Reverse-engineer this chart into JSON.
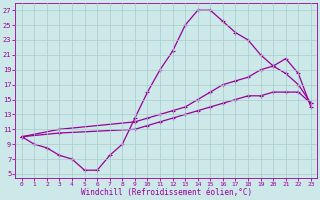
{
  "xlabel": "Windchill (Refroidissement éolien,°C)",
  "bg_color": "#cce8e8",
  "line_color": "#990099",
  "grid_color": "#aacccc",
  "xlim": [
    -0.5,
    23.5
  ],
  "ylim": [
    4.5,
    28
  ],
  "xticks": [
    0,
    1,
    2,
    3,
    4,
    5,
    6,
    7,
    8,
    9,
    10,
    11,
    12,
    13,
    14,
    15,
    16,
    17,
    18,
    19,
    20,
    21,
    22,
    23
  ],
  "yticks": [
    5,
    7,
    9,
    11,
    13,
    15,
    17,
    19,
    21,
    23,
    25,
    27
  ],
  "line1_x": [
    0,
    1,
    2,
    3,
    4,
    5,
    6,
    7,
    8,
    9,
    10,
    11,
    12,
    13,
    14,
    15,
    16,
    17,
    18,
    19,
    20,
    21,
    22,
    23
  ],
  "line1_y": [
    10,
    9,
    8.5,
    7.5,
    7,
    5.5,
    5.5,
    7.5,
    9,
    12.5,
    16,
    19,
    21.5,
    25,
    27,
    27,
    25.5,
    24,
    23,
    21,
    19.5,
    18.5,
    17,
    14.5
  ],
  "line2_x": [
    0,
    3,
    9,
    10,
    11,
    12,
    13,
    14,
    15,
    16,
    17,
    18,
    19,
    20,
    21,
    22,
    23
  ],
  "line2_y": [
    10,
    11,
    12,
    12.5,
    13,
    13.5,
    14,
    15,
    16,
    17,
    17.5,
    18,
    19,
    19.5,
    20.5,
    18.5,
    14
  ],
  "line3_x": [
    0,
    3,
    9,
    10,
    11,
    12,
    13,
    14,
    15,
    16,
    17,
    18,
    19,
    20,
    21,
    22,
    23
  ],
  "line3_y": [
    10,
    10.5,
    11,
    11.5,
    12,
    12.5,
    13,
    13.5,
    14,
    14.5,
    15,
    15.5,
    15.5,
    16,
    16,
    16,
    14.5
  ]
}
